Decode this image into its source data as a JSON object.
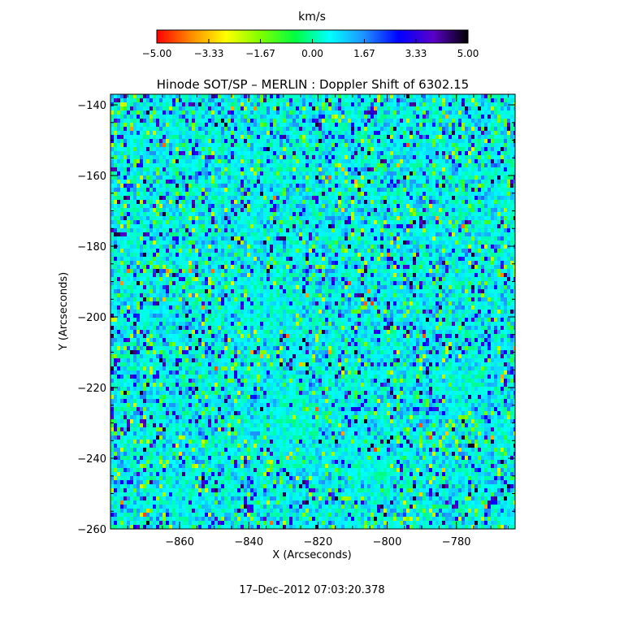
{
  "chart_data": {
    "type": "heatmap",
    "title": "Hinode SOT/SP – MERLIN : Doppler Shift of 6302.15",
    "xlabel": "X (Arcseconds)",
    "ylabel": "Y (Arcseconds)",
    "xlim": [
      -880,
      -763
    ],
    "ylim": [
      -260,
      -137
    ],
    "x_ticks": [
      -860,
      -840,
      -820,
      -800,
      -780
    ],
    "y_ticks": [
      -140,
      -160,
      -180,
      -200,
      -220,
      -240,
      -260
    ],
    "x_tick_labels": [
      "−860",
      "−840",
      "−820",
      "−800",
      "−780"
    ],
    "y_tick_labels": [
      "−140",
      "−160",
      "−180",
      "−200",
      "−220",
      "−240",
      "−260"
    ],
    "colorbar": {
      "label": "km/s",
      "range": [
        -5.0,
        5.0
      ],
      "ticks": [
        -5.0,
        -3.33,
        -1.67,
        0.0,
        1.67,
        3.33,
        5.0
      ],
      "tick_labels": [
        "−5.00",
        "−3.33",
        "−1.67",
        "0.00",
        "1.67",
        "3.33",
        "5.00"
      ],
      "colors": [
        "#ff0000",
        "#ff8c00",
        "#ffff00",
        "#7fff00",
        "#00ff40",
        "#00ffff",
        "#1e90ff",
        "#0000ff",
        "#5a00c8",
        "#000000"
      ]
    },
    "background_value_kms": 0.4,
    "quiet_regions": [
      {
        "x": -835,
        "y": -195,
        "r": 12
      },
      {
        "x": -830,
        "y": -230,
        "r": 12
      },
      {
        "x": -805,
        "y": -245,
        "r": 9
      },
      {
        "x": -778,
        "y": -218,
        "r": 9
      },
      {
        "x": -860,
        "y": -250,
        "r": 8
      }
    ],
    "grid": false,
    "footer": "17–Dec–2012 07:03:20.378"
  }
}
